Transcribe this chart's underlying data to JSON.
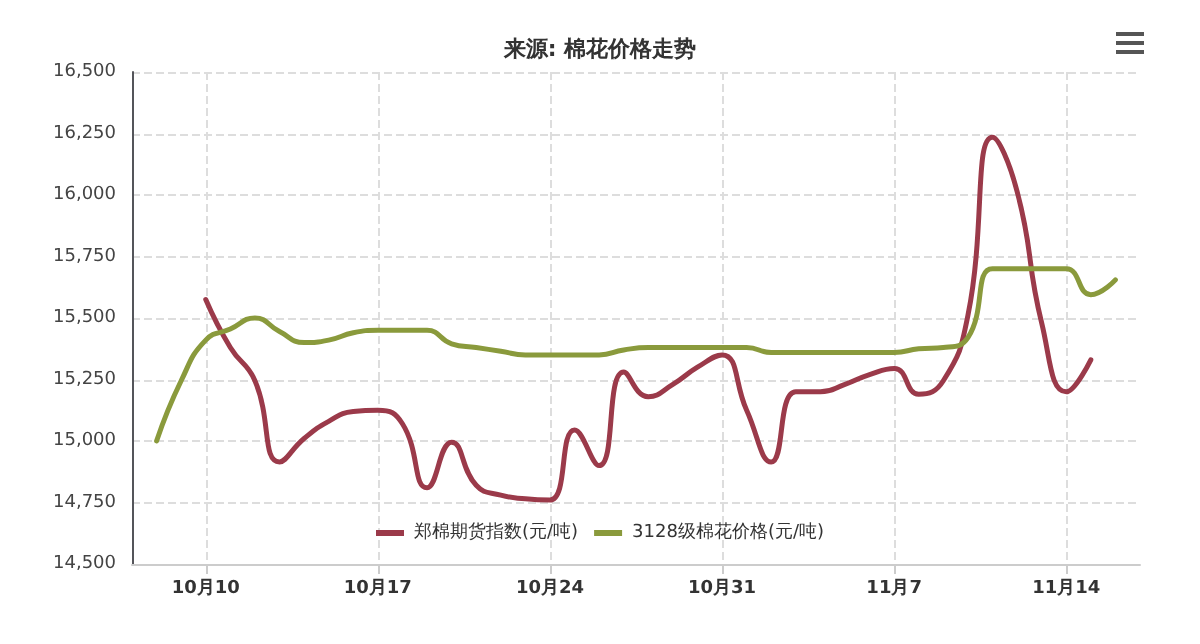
{
  "chart_data": {
    "type": "line",
    "title": "来源: 棉花价格走势",
    "x": [
      "--10-08",
      "--10-09",
      "--10-10",
      "--10-11",
      "--10-12",
      "--10-13",
      "--10-14",
      "--10-15",
      "--10-16",
      "--10-17",
      "--10-18",
      "--10-19",
      "--10-20",
      "--10-21",
      "--10-22",
      "--10-23",
      "--10-24",
      "--10-25",
      "--10-26",
      "--10-27",
      "--10-28",
      "--10-29",
      "--10-30",
      "--10-31",
      "--11-01",
      "--11-02",
      "--11-03",
      "--11-04",
      "--11-05",
      "--11-06",
      "--11-07",
      "--11-08",
      "--11-09",
      "--11-10",
      "--11-11",
      "--11-12",
      "--11-13",
      "--11-14",
      "--11-15",
      "--11-16"
    ],
    "series": [
      {
        "name": "郑棉期货指数(元/吨)",
        "color": "#9b3a4a",
        "values": [
          null,
          null,
          15575,
          15380,
          15245,
          14915,
          15010,
          15080,
          15120,
          15125,
          15070,
          14810,
          14995,
          14820,
          14780,
          14765,
          14760,
          15045,
          14900,
          15280,
          15180,
          15230,
          15300,
          15350,
          15125,
          14915,
          15200,
          15200,
          15230,
          15270,
          15295,
          15190,
          15245,
          15510,
          16235,
          16015,
          15480,
          15200,
          15330,
          null
        ]
      },
      {
        "name": "3128级棉花价格(元/吨)",
        "color": "#8a9a3c",
        "values": [
          15000,
          15245,
          15410,
          15455,
          15500,
          15445,
          15400,
          15410,
          15440,
          15450,
          15450,
          15450,
          15395,
          15380,
          15365,
          15350,
          15350,
          15350,
          15350,
          15370,
          15380,
          15380,
          15380,
          15380,
          15380,
          15360,
          15360,
          15360,
          15360,
          15360,
          15360,
          15375,
          15380,
          15420,
          15700,
          15700,
          15700,
          15700,
          15595,
          15655
        ]
      }
    ],
    "xlim": [
      "--10-07",
      "--11-17"
    ],
    "xticks": [
      {
        "value": "--10-10",
        "label": "10月10"
      },
      {
        "value": "--10-17",
        "label": "10月17"
      },
      {
        "value": "--10-24",
        "label": "10月24"
      },
      {
        "value": "--10-31",
        "label": "10月31"
      },
      {
        "value": "--11-07",
        "label": "11月7"
      },
      {
        "value": "--11-14",
        "label": "11月14"
      }
    ],
    "ylim": [
      14500,
      16500
    ],
    "yticks": [
      {
        "value": 14500,
        "label": "14,500"
      },
      {
        "value": 14750,
        "label": "14,750"
      },
      {
        "value": 15000,
        "label": "15,000"
      },
      {
        "value": 15250,
        "label": "15,250"
      },
      {
        "value": 15500,
        "label": "15,500"
      },
      {
        "value": 15750,
        "label": "15,750"
      },
      {
        "value": 16000,
        "label": "16,000"
      },
      {
        "value": 16250,
        "label": "16,250"
      },
      {
        "value": 16500,
        "label": "16,500"
      }
    ],
    "grid": true,
    "legend": "bottom",
    "marker": "none",
    "line_style": "solid"
  }
}
